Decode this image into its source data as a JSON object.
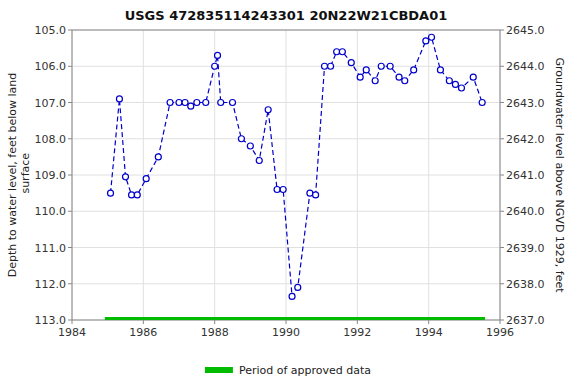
{
  "chart_data": {
    "type": "line",
    "title": "USGS 472835114243301 20N22W21CBDA01",
    "y_label": "Depth to water level, feet below land\n surface",
    "y2_label": "Groundwater level above NGVD 1929, feet",
    "x": [
      1985.08,
      1985.33,
      1985.5,
      1985.67,
      1985.83,
      1986.08,
      1986.42,
      1986.75,
      1987.0,
      1987.17,
      1987.33,
      1987.5,
      1987.75,
      1988.0,
      1988.08,
      1988.17,
      1988.5,
      1988.75,
      1989.0,
      1989.25,
      1989.5,
      1989.75,
      1989.92,
      1990.17,
      1990.33,
      1990.67,
      1990.83,
      1991.08,
      1991.25,
      1991.42,
      1991.58,
      1991.83,
      1992.08,
      1992.25,
      1992.5,
      1992.67,
      1992.92,
      1993.17,
      1993.33,
      1993.58,
      1993.92,
      1994.08,
      1994.33,
      1994.58,
      1994.75,
      1994.92,
      1995.25,
      1995.5
    ],
    "series": [
      {
        "color": "#0000CC",
        "marker": "circle",
        "line_style": "dashed",
        "values": [
          109.5,
          106.9,
          109.05,
          109.55,
          109.55,
          109.1,
          108.5,
          107.0,
          107.0,
          107.0,
          107.1,
          107.0,
          107.0,
          106.0,
          105.7,
          107.0,
          107.0,
          108.0,
          108.2,
          108.6,
          107.2,
          109.4,
          109.4,
          112.35,
          112.1,
          109.5,
          109.55,
          106.0,
          106.0,
          105.6,
          105.6,
          105.9,
          106.3,
          106.1,
          106.4,
          106.0,
          106.0,
          106.3,
          106.4,
          106.1,
          105.3,
          105.2,
          106.1,
          106.4,
          106.5,
          106.6,
          106.3,
          107.0
        ]
      },
      {
        "name": "Period of approved data",
        "color": "#00bb00",
        "line_style": "solid",
        "x": [
          1984.92,
          1995.58
        ],
        "values": [
          113.0,
          113.0
        ]
      }
    ],
    "xlim": [
      1984,
      1996
    ],
    "xticks": [
      1984,
      1986,
      1988,
      1990,
      1992,
      1994,
      1996
    ],
    "ylim": [
      113.0,
      105.0
    ],
    "yticks": [
      {
        "value": 105.0,
        "label": "105.0"
      },
      {
        "value": 106.0,
        "label": "106.0"
      },
      {
        "value": 107.0,
        "label": "107.0"
      },
      {
        "value": 108.0,
        "label": "108.0"
      },
      {
        "value": 109.0,
        "label": "109.0"
      },
      {
        "value": 110.0,
        "label": "110.0"
      },
      {
        "value": 111.0,
        "label": "111.0"
      },
      {
        "value": 112.0,
        "label": "112.0"
      },
      {
        "value": 113.0,
        "label": "113.0"
      }
    ],
    "y2lim": [
      2637.0,
      2645.0
    ],
    "y2ticks": [
      {
        "value": 2637.0,
        "label": "2637.0"
      },
      {
        "value": 2638.0,
        "label": "2638.0"
      },
      {
        "value": 2639.0,
        "label": "2639.0"
      },
      {
        "value": 2640.0,
        "label": "2640.0"
      },
      {
        "value": 2641.0,
        "label": "2641.0"
      },
      {
        "value": 2642.0,
        "label": "2642.0"
      },
      {
        "value": 2643.0,
        "label": "2643.0"
      },
      {
        "value": 2644.0,
        "label": "2644.0"
      },
      {
        "value": 2645.0,
        "label": "2645.0"
      }
    ],
    "grid": true,
    "legend": "bottom"
  }
}
